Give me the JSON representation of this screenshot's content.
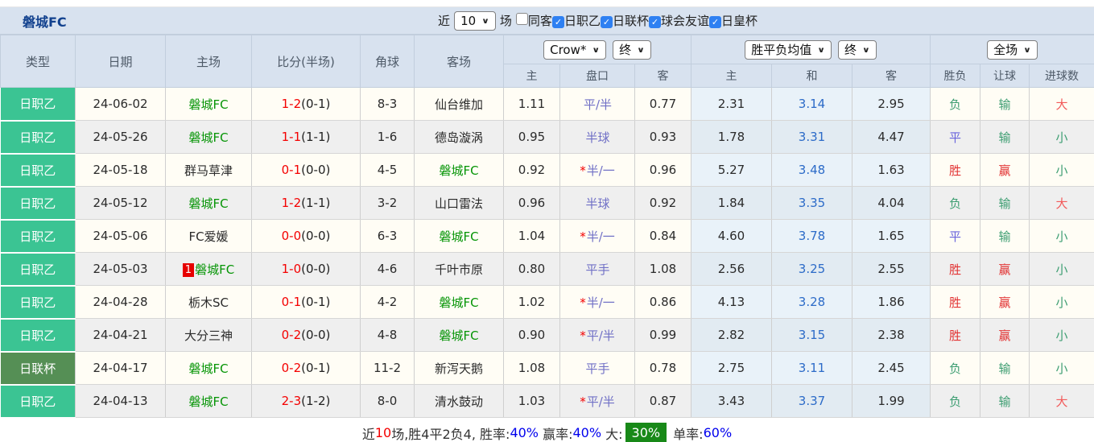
{
  "topbar": {
    "title": "磐城FC",
    "near_label": "近",
    "matches_value": "10",
    "field_label": "场",
    "checkboxes": [
      {
        "label": "同客",
        "checked": false
      },
      {
        "label": "日职乙",
        "checked": true
      },
      {
        "label": "日联杯",
        "checked": true
      },
      {
        "label": "球会友谊",
        "checked": true
      },
      {
        "label": "日皇杯",
        "checked": true
      }
    ]
  },
  "header": {
    "static_cols": [
      "类型",
      "日期",
      "主场",
      "比分(半场)",
      "角球",
      "客场"
    ],
    "odds_group": {
      "company_select": "Crow*",
      "time_select": "终",
      "sub": [
        "主",
        "盘口",
        "客"
      ]
    },
    "avg_group": {
      "avg_select": "胜平负均值",
      "time_select": "终",
      "sub": [
        "主",
        "和",
        "客"
      ]
    },
    "result_group": {
      "scope_select": "全场",
      "sub": [
        "胜负",
        "让球",
        "进球数"
      ]
    }
  },
  "type_colors": {
    "日职乙": "l-league",
    "日联杯": "l-cup"
  },
  "outcome_colors": {
    "胜": "#e23333",
    "平": "#6a64dc",
    "负": "#3e9e72",
    "赢": "#e23333",
    "输": "#3e9e72",
    "大": "#f25a5a",
    "小": "#3e9e72"
  },
  "rows": [
    {
      "type": "日职乙",
      "date": "24-06-02",
      "home": "磐城FC",
      "home_self": true,
      "home_badge": "",
      "score": "1-2",
      "half": "(0-1)",
      "corner": "8-3",
      "away": "仙台维加",
      "away_self": false,
      "o_home": "1.11",
      "o_star": false,
      "o_line": "平/半",
      "o_away": "0.77",
      "a_home": "2.31",
      "a_draw": "3.14",
      "a_away": "2.95",
      "r_wdl": "负",
      "r_let": "输",
      "r_goal": "大"
    },
    {
      "type": "日职乙",
      "date": "24-05-26",
      "home": "磐城FC",
      "home_self": true,
      "home_badge": "",
      "score": "1-1",
      "half": "(1-1)",
      "corner": "1-6",
      "away": "德岛漩涡",
      "away_self": false,
      "o_home": "0.95",
      "o_star": false,
      "o_line": "半球",
      "o_away": "0.93",
      "a_home": "1.78",
      "a_draw": "3.31",
      "a_away": "4.47",
      "r_wdl": "平",
      "r_let": "输",
      "r_goal": "小"
    },
    {
      "type": "日职乙",
      "date": "24-05-18",
      "home": "群马草津",
      "home_self": false,
      "home_badge": "",
      "score": "0-1",
      "half": "(0-0)",
      "corner": "4-5",
      "away": "磐城FC",
      "away_self": true,
      "o_home": "0.92",
      "o_star": true,
      "o_line": "半/一",
      "o_away": "0.96",
      "a_home": "5.27",
      "a_draw": "3.48",
      "a_away": "1.63",
      "r_wdl": "胜",
      "r_let": "赢",
      "r_goal": "小"
    },
    {
      "type": "日职乙",
      "date": "24-05-12",
      "home": "磐城FC",
      "home_self": true,
      "home_badge": "",
      "score": "1-2",
      "half": "(1-1)",
      "corner": "3-2",
      "away": "山口雷法",
      "away_self": false,
      "o_home": "0.96",
      "o_star": false,
      "o_line": "半球",
      "o_away": "0.92",
      "a_home": "1.84",
      "a_draw": "3.35",
      "a_away": "4.04",
      "r_wdl": "负",
      "r_let": "输",
      "r_goal": "大"
    },
    {
      "type": "日职乙",
      "date": "24-05-06",
      "home": "FC爱媛",
      "home_self": false,
      "home_badge": "",
      "score": "0-0",
      "half": "(0-0)",
      "corner": "6-3",
      "away": "磐城FC",
      "away_self": true,
      "o_home": "1.04",
      "o_star": true,
      "o_line": "半/一",
      "o_away": "0.84",
      "a_home": "4.60",
      "a_draw": "3.78",
      "a_away": "1.65",
      "r_wdl": "平",
      "r_let": "输",
      "r_goal": "小"
    },
    {
      "type": "日职乙",
      "date": "24-05-03",
      "home": "磐城FC",
      "home_self": true,
      "home_badge": "1",
      "score": "1-0",
      "half": "(0-0)",
      "corner": "4-6",
      "away": "千叶市原",
      "away_self": false,
      "o_home": "0.80",
      "o_star": false,
      "o_line": "平手",
      "o_away": "1.08",
      "a_home": "2.56",
      "a_draw": "3.25",
      "a_away": "2.55",
      "r_wdl": "胜",
      "r_let": "赢",
      "r_goal": "小"
    },
    {
      "type": "日职乙",
      "date": "24-04-28",
      "home": "栃木SC",
      "home_self": false,
      "home_badge": "",
      "score": "0-1",
      "half": "(0-1)",
      "corner": "4-2",
      "away": "磐城FC",
      "away_self": true,
      "o_home": "1.02",
      "o_star": true,
      "o_line": "半/一",
      "o_away": "0.86",
      "a_home": "4.13",
      "a_draw": "3.28",
      "a_away": "1.86",
      "r_wdl": "胜",
      "r_let": "赢",
      "r_goal": "小"
    },
    {
      "type": "日职乙",
      "date": "24-04-21",
      "home": "大分三神",
      "home_self": false,
      "home_badge": "",
      "score": "0-2",
      "half": "(0-0)",
      "corner": "4-8",
      "away": "磐城FC",
      "away_self": true,
      "o_home": "0.90",
      "o_star": true,
      "o_line": "平/半",
      "o_away": "0.99",
      "a_home": "2.82",
      "a_draw": "3.15",
      "a_away": "2.38",
      "r_wdl": "胜",
      "r_let": "赢",
      "r_goal": "小"
    },
    {
      "type": "日联杯",
      "date": "24-04-17",
      "home": "磐城FC",
      "home_self": true,
      "home_badge": "",
      "score": "0-2",
      "half": "(0-1)",
      "corner": "11-2",
      "away": "新泻天鹅",
      "away_self": false,
      "o_home": "1.08",
      "o_star": false,
      "o_line": "平手",
      "o_away": "0.78",
      "a_home": "2.75",
      "a_draw": "3.11",
      "a_away": "2.45",
      "r_wdl": "负",
      "r_let": "输",
      "r_goal": "小"
    },
    {
      "type": "日职乙",
      "date": "24-04-13",
      "home": "磐城FC",
      "home_self": true,
      "home_badge": "",
      "score": "2-3",
      "half": "(1-2)",
      "corner": "8-0",
      "away": "清水鼓动",
      "away_self": false,
      "o_home": "1.03",
      "o_star": true,
      "o_line": "平/半",
      "o_away": "0.87",
      "a_home": "3.43",
      "a_draw": "3.37",
      "a_away": "1.99",
      "r_wdl": "负",
      "r_let": "输",
      "r_goal": "大"
    }
  ],
  "footer": {
    "segments": [
      {
        "text": "近",
        "style": "plain"
      },
      {
        "text": "10",
        "style": "red"
      },
      {
        "text": "场,胜4平2负4, ",
        "style": "plain"
      },
      {
        "text": "胜率:",
        "style": "plain"
      },
      {
        "text": "40%",
        "style": "blue"
      },
      {
        "text": " 赢率:",
        "style": "plain"
      },
      {
        "text": "40%",
        "style": "blue"
      },
      {
        "text": " 大:",
        "style": "plain"
      },
      {
        "text": "30%",
        "style": "chip"
      },
      {
        "text": " 单率:",
        "style": "plain"
      },
      {
        "text": "60%",
        "style": "blue"
      }
    ]
  }
}
